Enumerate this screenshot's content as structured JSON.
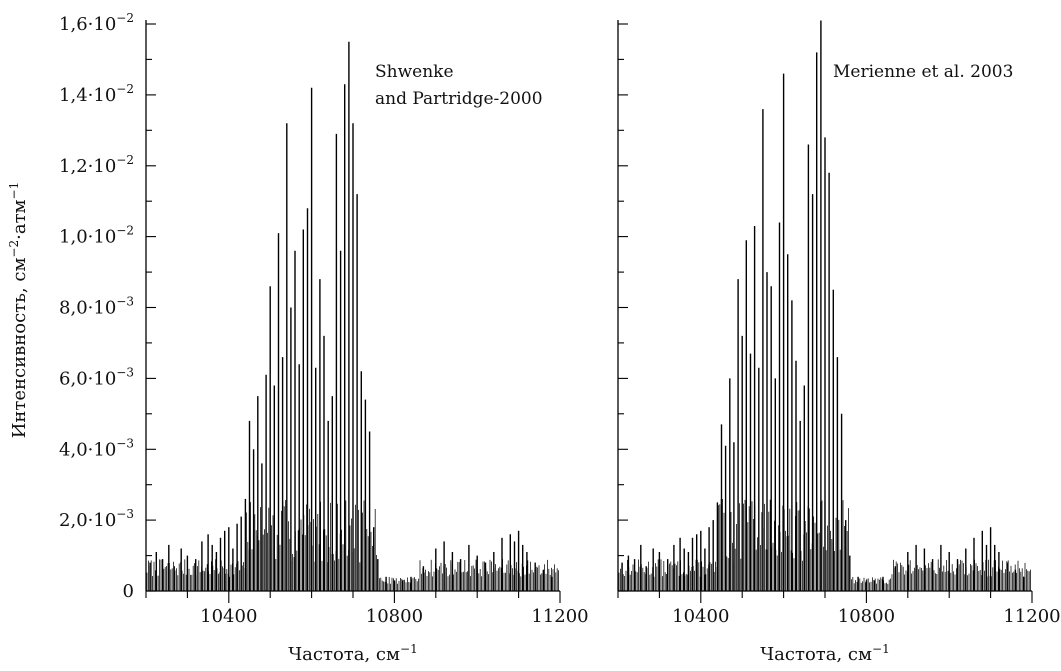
{
  "chart_data": [
    {
      "type": "bar",
      "annotation_lines": [
        "Shwenke",
        "and Partridge-2000"
      ],
      "xlabel": "Частота, см",
      "xlabel_sup": "−1",
      "ylabel_main": "Интенсивность, см",
      "ylabel_sup1": "−2",
      "ylabel_mid": "·атм",
      "ylabel_sup2": "−1",
      "xlim": [
        10200,
        11200
      ],
      "ylim": [
        0,
        0.016
      ],
      "x_tick_values": [
        10400,
        10800,
        11200
      ],
      "x_tick_labels": [
        "10400",
        "10800",
        "11200"
      ],
      "y_tick_labels": [
        {
          "value": 0,
          "label": "0"
        },
        {
          "value": 0.002,
          "mant": "2,0·10",
          "exp": "−3"
        },
        {
          "value": 0.004,
          "mant": "4,0·10",
          "exp": "−3"
        },
        {
          "value": 0.006,
          "mant": "6,0·10",
          "exp": "−3"
        },
        {
          "value": 0.008,
          "mant": "8,0·10",
          "exp": "−3"
        },
        {
          "value": 0.01,
          "mant": "1,0·10",
          "exp": "−2"
        },
        {
          "value": 0.012,
          "mant": "1,2·10",
          "exp": "−2"
        },
        {
          "value": 0.014,
          "mant": "1,4·10",
          "exp": "−2"
        },
        {
          "value": 0.016,
          "mant": "1,6·10",
          "exp": "−2"
        }
      ],
      "x": [
        10210,
        10225,
        10240,
        10255,
        10268,
        10285,
        10300,
        10320,
        10335,
        10350,
        10360,
        10370,
        10380,
        10390,
        10400,
        10410,
        10420,
        10430,
        10440,
        10450,
        10460,
        10470,
        10480,
        10490,
        10500,
        10510,
        10520,
        10530,
        10540,
        10550,
        10560,
        10570,
        10580,
        10590,
        10600,
        10610,
        10620,
        10630,
        10640,
        10650,
        10660,
        10670,
        10680,
        10690,
        10700,
        10710,
        10720,
        10730,
        10740,
        10750,
        10760,
        10780,
        10800,
        10820,
        10840,
        10870,
        10900,
        10920,
        10940,
        10960,
        10980,
        11000,
        11020,
        11040,
        11060,
        11080,
        11090,
        11100,
        11110,
        11120,
        11140,
        11160,
        11180
      ],
      "values": [
        0.0008,
        0.0011,
        0.0009,
        0.0013,
        0.0007,
        0.0012,
        0.001,
        0.0009,
        0.0014,
        0.0016,
        0.0013,
        0.0011,
        0.0015,
        0.0017,
        0.0018,
        0.0012,
        0.0019,
        0.0021,
        0.0026,
        0.0048,
        0.004,
        0.0055,
        0.0036,
        0.0061,
        0.0086,
        0.0058,
        0.0101,
        0.0066,
        0.0132,
        0.008,
        0.0096,
        0.0064,
        0.0102,
        0.0108,
        0.0142,
        0.0063,
        0.0088,
        0.0072,
        0.0048,
        0.0055,
        0.0129,
        0.0096,
        0.0143,
        0.0155,
        0.0132,
        0.0112,
        0.0062,
        0.0054,
        0.0045,
        0.0018,
        0.0009,
        0.0004,
        0.0003,
        0.0003,
        0.0004,
        0.0007,
        0.0012,
        0.0014,
        0.0011,
        0.0009,
        0.0013,
        0.001,
        0.0008,
        0.0011,
        0.0015,
        0.0016,
        0.0014,
        0.0017,
        0.0013,
        0.0011,
        0.0008,
        0.0006,
        0.0004
      ],
      "noise_seed": 7
    },
    {
      "type": "bar",
      "annotation_lines": [
        "Merienne et al. 2003"
      ],
      "xlabel": "Частота, см",
      "xlabel_sup": "−1",
      "xlim": [
        10200,
        11200
      ],
      "ylim": [
        0,
        0.016
      ],
      "x_tick_values": [
        10400,
        10800,
        11200
      ],
      "x_tick_labels": [
        "10400",
        "10800",
        "11200"
      ],
      "x": [
        10210,
        10225,
        10240,
        10255,
        10268,
        10285,
        10300,
        10320,
        10335,
        10350,
        10360,
        10370,
        10380,
        10390,
        10400,
        10410,
        10420,
        10430,
        10440,
        10450,
        10460,
        10470,
        10480,
        10490,
        10500,
        10510,
        10520,
        10530,
        10540,
        10550,
        10560,
        10570,
        10580,
        10590,
        10600,
        10610,
        10620,
        10630,
        10640,
        10650,
        10660,
        10670,
        10680,
        10690,
        10700,
        10710,
        10720,
        10730,
        10740,
        10750,
        10760,
        10780,
        10800,
        10820,
        10840,
        10870,
        10900,
        10920,
        10940,
        10960,
        10980,
        11000,
        11020,
        11040,
        11060,
        11080,
        11090,
        11100,
        11110,
        11120,
        11140,
        11160,
        11180
      ],
      "values": [
        0.0008,
        0.001,
        0.0009,
        0.0013,
        0.0007,
        0.0012,
        0.0011,
        0.0009,
        0.0013,
        0.0015,
        0.0012,
        0.0011,
        0.0015,
        0.0016,
        0.0017,
        0.0012,
        0.0018,
        0.002,
        0.0025,
        0.0047,
        0.0041,
        0.006,
        0.0042,
        0.0088,
        0.0072,
        0.0099,
        0.0067,
        0.0103,
        0.0063,
        0.0136,
        0.009,
        0.0086,
        0.006,
        0.0104,
        0.0146,
        0.0095,
        0.0082,
        0.0065,
        0.0048,
        0.0058,
        0.0126,
        0.0112,
        0.0152,
        0.0161,
        0.0128,
        0.0118,
        0.0085,
        0.0066,
        0.005,
        0.002,
        0.001,
        0.0004,
        0.0003,
        0.0003,
        0.0004,
        0.0007,
        0.0011,
        0.0013,
        0.0012,
        0.0009,
        0.0013,
        0.0011,
        0.0009,
        0.0012,
        0.0015,
        0.0017,
        0.0013,
        0.0018,
        0.0013,
        0.0011,
        0.0008,
        0.0006,
        0.0004
      ],
      "noise_seed": 13
    }
  ]
}
